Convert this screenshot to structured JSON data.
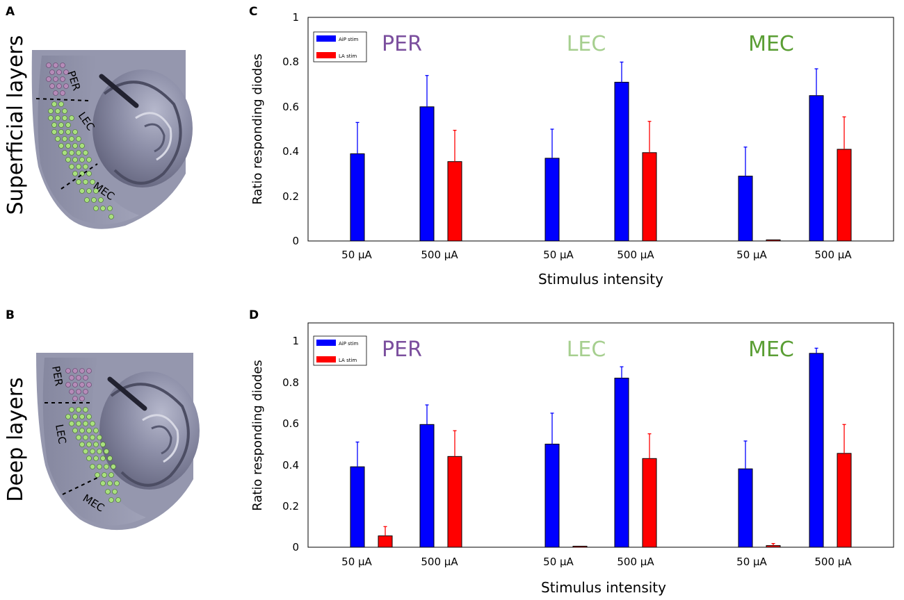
{
  "panels": {
    "A": {
      "letter": "A",
      "side_label": "Superficial layers",
      "region_labels": [
        "PER",
        "LEC",
        "MEC"
      ]
    },
    "B": {
      "letter": "B",
      "side_label": "Deep layers",
      "region_labels": [
        "PER",
        "LEC",
        "MEC"
      ]
    }
  },
  "colors": {
    "aip": "#0000ff",
    "la": "#ff0000",
    "per": "#7b4f9e",
    "lec": "#a6cf8f",
    "mec": "#5a9e34",
    "per_dot": "#b58bb8",
    "ec_dot": "#a9e07e"
  },
  "chart_data": [
    {
      "id": "C",
      "type": "bar",
      "letter": "C",
      "ylabel": "Ratio responding diodes",
      "xlabel": "Stimulus intensity",
      "ylim": [
        0,
        1
      ],
      "yticks": [
        "0",
        "0.2",
        "0.4",
        "0.6",
        "0.8",
        "1"
      ],
      "legend": {
        "position": "top-left",
        "entries": [
          "AiP stim",
          "LA stim"
        ]
      },
      "groups": [
        "PER",
        "LEC",
        "MEC"
      ],
      "categories": [
        "50 μA",
        "500 μA",
        "50 μA",
        "500 μA",
        "50 μA",
        "500 μA"
      ],
      "series": [
        {
          "name": "AiP stim",
          "values": [
            0.39,
            0.6,
            0.37,
            0.71,
            0.29,
            0.65
          ],
          "errors": [
            0.14,
            0.14,
            0.13,
            0.09,
            0.13,
            0.12
          ]
        },
        {
          "name": "LA stim",
          "values": [
            0.0,
            0.355,
            0.0,
            0.395,
            0.005,
            0.41
          ],
          "errors": [
            0.0,
            0.14,
            0.0,
            0.14,
            0.0,
            0.145
          ]
        }
      ]
    },
    {
      "id": "D",
      "type": "bar",
      "letter": "D",
      "ylabel": "Ratio responding diodes",
      "xlabel": "Stimulus intensity",
      "ylim": [
        0,
        1
      ],
      "yticks": [
        "0",
        "0.2",
        "0.4",
        "0.6",
        "0.8",
        "1"
      ],
      "legend": {
        "position": "top-left",
        "entries": [
          "AiP stim",
          "LA stim"
        ]
      },
      "groups": [
        "PER",
        "LEC",
        "MEC"
      ],
      "categories": [
        "50 μA",
        "500 μA",
        "50 μA",
        "500 μA",
        "50 μA",
        "500 μA"
      ],
      "series": [
        {
          "name": "AiP stim",
          "values": [
            0.39,
            0.595,
            0.5,
            0.82,
            0.38,
            0.94
          ],
          "errors": [
            0.12,
            0.095,
            0.15,
            0.055,
            0.135,
            0.025
          ]
        },
        {
          "name": "LA stim",
          "values": [
            0.055,
            0.44,
            0.005,
            0.43,
            0.008,
            0.455
          ],
          "errors": [
            0.045,
            0.125,
            0.0,
            0.12,
            0.01,
            0.14
          ]
        }
      ]
    }
  ]
}
